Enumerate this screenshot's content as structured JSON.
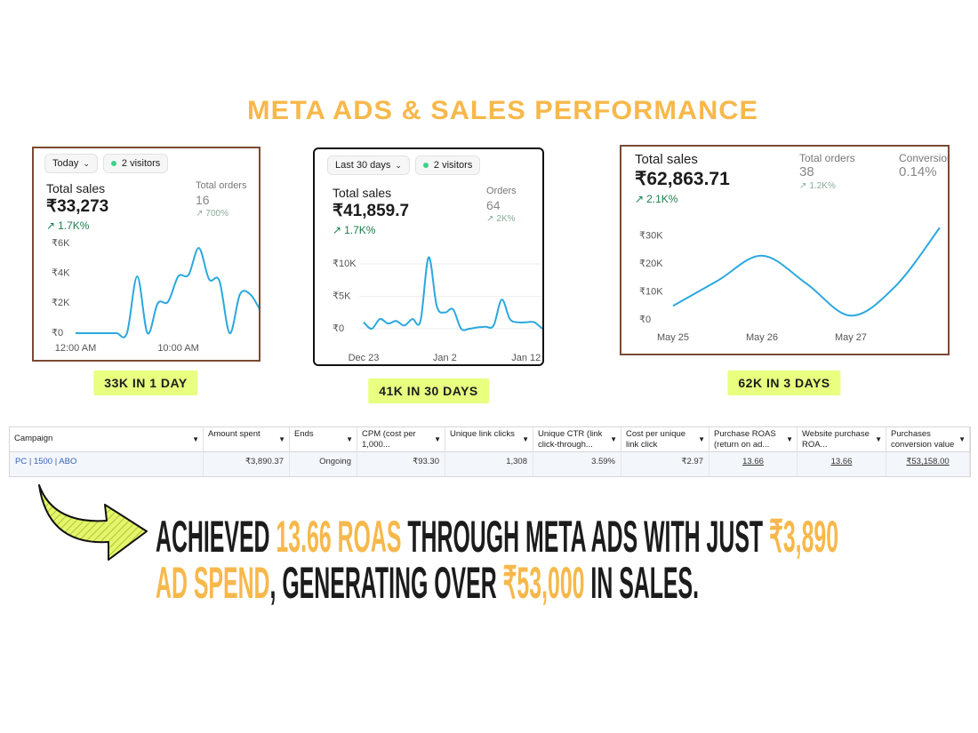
{
  "title": "META ADS & SALES PERFORMANCE",
  "panels": [
    {
      "filter": "Today",
      "visitors": "2 visitors",
      "metrics": [
        {
          "label": "Total sales",
          "value": "₹33,273",
          "change": "1.7K%"
        },
        {
          "label": "Total orders",
          "value": "16",
          "change": "700%"
        }
      ],
      "chart": {
        "type": "line",
        "color": "#2ba8df",
        "grid": false,
        "x": [
          0,
          1,
          2,
          3,
          4,
          5,
          6,
          7,
          8,
          9,
          10,
          11,
          12,
          13,
          14,
          15,
          16,
          17,
          18
        ],
        "values": [
          0,
          0,
          0,
          0,
          0,
          0,
          3800,
          0,
          2000,
          2100,
          3800,
          3900,
          5700,
          3600,
          3500,
          0,
          2600,
          2600,
          1500
        ],
        "xlim": [
          0,
          18
        ],
        "xticks": [
          {
            "value": 0,
            "label": "12:00 AM"
          },
          {
            "value": 10,
            "label": "10:00 AM"
          }
        ],
        "ylim": [
          0,
          6000
        ],
        "yticks": [
          {
            "value": 0,
            "label": "₹0"
          },
          {
            "value": 2000,
            "label": "₹2K"
          },
          {
            "value": 4000,
            "label": "₹4K"
          },
          {
            "value": 6000,
            "label": "₹6K"
          }
        ]
      },
      "caption": "33K IN 1 DAY"
    },
    {
      "filter": "Last 30 days",
      "visitors": "2 visitors",
      "metrics": [
        {
          "label": "Total sales",
          "value": "₹41,859.7",
          "change": "1.7K%"
        },
        {
          "label": "Orders",
          "value": "64",
          "change": "2K%"
        }
      ],
      "chart": {
        "type": "line",
        "color": "#2ba8df",
        "grid": true,
        "x": [
          0,
          1,
          2,
          3,
          4,
          5,
          6,
          7,
          8,
          9,
          10,
          11,
          12,
          13,
          14,
          15,
          16,
          17,
          18,
          19,
          20,
          21,
          22
        ],
        "values": [
          1000,
          0,
          1500,
          800,
          1200,
          500,
          1500,
          1200,
          11000,
          3500,
          2500,
          3000,
          0,
          0,
          200,
          300,
          500,
          4500,
          1500,
          1000,
          1000,
          1000,
          0
        ],
        "xlim": [
          0,
          22
        ],
        "xticks": [
          {
            "value": 0,
            "label": "Dec 23"
          },
          {
            "value": 10,
            "label": "Jan 2"
          },
          {
            "value": 20,
            "label": "Jan 12"
          }
        ],
        "ylim": [
          0,
          11500
        ],
        "yticks": [
          {
            "value": 0,
            "label": "₹0"
          },
          {
            "value": 5000,
            "label": "₹5K"
          },
          {
            "value": 10000,
            "label": "₹10K"
          }
        ]
      },
      "caption": "41K IN 30 DAYS"
    },
    {
      "metrics": [
        {
          "label": "Total sales",
          "value": "₹62,863.71",
          "change": "2.1K%"
        },
        {
          "label": "Total orders",
          "value": "38",
          "change": "1.2K%"
        },
        {
          "label": "Conversion",
          "value": "0.14%"
        }
      ],
      "chart": {
        "type": "line",
        "color": "#2ba8df",
        "grid": false,
        "x": [
          0,
          0.5,
          1,
          1.5,
          2,
          2.5,
          3
        ],
        "values": [
          5000,
          14000,
          23000,
          13000,
          1500,
          12000,
          33000
        ],
        "xlim": [
          0,
          3
        ],
        "xticks": [
          {
            "value": 0,
            "label": "May 25"
          },
          {
            "value": 1,
            "label": "May 26"
          },
          {
            "value": 2,
            "label": "May 27"
          }
        ],
        "ylim": [
          0,
          35000
        ],
        "yticks": [
          {
            "value": 0,
            "label": "₹0"
          },
          {
            "value": 10000,
            "label": "₹10K"
          },
          {
            "value": 20000,
            "label": "₹20K"
          },
          {
            "value": 30000,
            "label": "₹30K"
          }
        ]
      },
      "caption": "62K IN 3 DAYS"
    }
  ],
  "table": {
    "headers": [
      "Campaign",
      "Amount spent",
      "Ends",
      "CPM (cost per 1,000...",
      "Unique link clicks",
      "Unique CTR (link click-through...",
      "Cost per unique link click",
      "Purchase ROAS (return on ad...",
      "Website purchase ROA...",
      "Purchases conversion value"
    ],
    "rows": [
      [
        "PC | 1500 | ABO",
        "₹3,890.37",
        "Ongoing",
        "₹93.30",
        "1,308",
        "3.59%",
        "₹2.97",
        "13.66",
        "13.66",
        "₹53,158.00"
      ]
    ]
  },
  "summary": {
    "lines": [
      [
        {
          "text": "ACHIEVED ",
          "highlight": false
        },
        {
          "text": "13.66 ROAS",
          "highlight": true
        },
        {
          "text": " THROUGH META ADS WITH JUST ",
          "highlight": false
        },
        {
          "text": "₹3,890",
          "highlight": true
        }
      ],
      [
        {
          "text": "AD SPEND",
          "highlight": true
        },
        {
          "text": ", GENERATING OVER ",
          "highlight": false
        },
        {
          "text": "₹53,000",
          "highlight": true
        },
        {
          "text": " IN SALES.",
          "highlight": false
        }
      ]
    ]
  }
}
